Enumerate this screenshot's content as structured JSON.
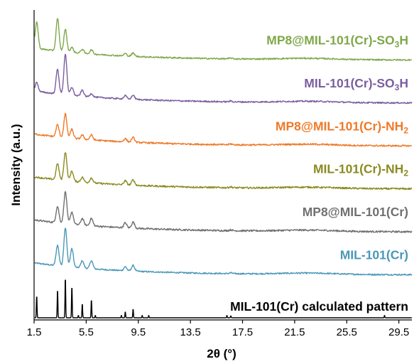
{
  "chart_data": {
    "type": "line",
    "xlabel": "2θ (°)",
    "ylabel": "Intensity (a.u.)",
    "xlim": [
      1.5,
      30.5
    ],
    "x_ticks": [
      1.5,
      5.5,
      9.5,
      13.5,
      17.5,
      21.5,
      25.5,
      29.5
    ],
    "x_tick_labels": [
      "1.5",
      "5.5",
      "9.5",
      "13.5",
      "17.5",
      "21.5",
      "25.5",
      "29.5"
    ],
    "grid": false,
    "legend": "inline labels at right of each trace",
    "peak_positions_2theta": [
      1.7,
      3.3,
      3.9,
      4.4,
      5.2,
      5.9,
      8.5,
      9.1,
      16.6
    ],
    "series": [
      {
        "name": "MIL-101(Cr) calculated pattern",
        "color": "#000000",
        "baseline": 0.0,
        "noise": 0.0,
        "amplitudes": [
          0.55,
          0.7,
          1.0,
          0.78,
          0.35,
          0.45,
          0.15,
          0.22,
          0.05
        ],
        "label_parts": [
          "MIL-101(Cr) calculated pattern"
        ]
      },
      {
        "name": "MIL-101(Cr)",
        "color": "#4a98b8",
        "baseline": 1.0,
        "noise": 0.3,
        "amplitudes": [
          0.0,
          0.5,
          0.95,
          0.45,
          0.18,
          0.2,
          0.1,
          0.14,
          0.02
        ],
        "label_parts": [
          "MIL-101(Cr)"
        ]
      },
      {
        "name": "MP8@MIL-101(Cr)",
        "color": "#707070",
        "baseline": 2.0,
        "noise": 0.6,
        "amplitudes": [
          0.0,
          0.4,
          0.78,
          0.3,
          0.16,
          0.18,
          0.12,
          0.15,
          0.02
        ],
        "label_parts": [
          "MP8@MIL-101(Cr)"
        ]
      },
      {
        "name": "MIL-101(Cr)-NH2",
        "color": "#8a8a22",
        "baseline": 3.0,
        "noise": 0.55,
        "amplitudes": [
          0.0,
          0.4,
          0.7,
          0.25,
          0.12,
          0.12,
          0.1,
          0.13,
          0.02
        ],
        "label_parts": [
          "MIL-101(Cr)-NH",
          "2"
        ]
      },
      {
        "name": "MP8@MIL-101(Cr)-NH2",
        "color": "#ee7a28",
        "baseline": 4.0,
        "noise": 0.5,
        "amplitudes": [
          0.0,
          0.3,
          0.58,
          0.22,
          0.1,
          0.12,
          0.08,
          0.12,
          0.02
        ],
        "label_parts": [
          "MP8@MIL-101(Cr)-NH",
          "2"
        ]
      },
      {
        "name": "MIL-101(Cr)-SO3H",
        "color": "#7a5ea0",
        "baseline": 5.0,
        "noise": 0.35,
        "amplitudes": [
          0.22,
          0.6,
          1.0,
          0.2,
          0.15,
          0.08,
          0.08,
          0.1,
          0.02
        ],
        "label_parts": [
          "MIL-101(Cr)-SO",
          "3",
          "H"
        ]
      },
      {
        "name": "MP8@MIL-101(Cr)-SO3H",
        "color": "#7fa84a",
        "baseline": 6.0,
        "noise": 0.35,
        "amplitudes": [
          0.65,
          0.8,
          0.55,
          0.12,
          0.1,
          0.1,
          0.06,
          0.08,
          0.02
        ],
        "label_parts": [
          "MP8@MIL-101(Cr)-SO",
          "3",
          "H"
        ]
      }
    ]
  }
}
